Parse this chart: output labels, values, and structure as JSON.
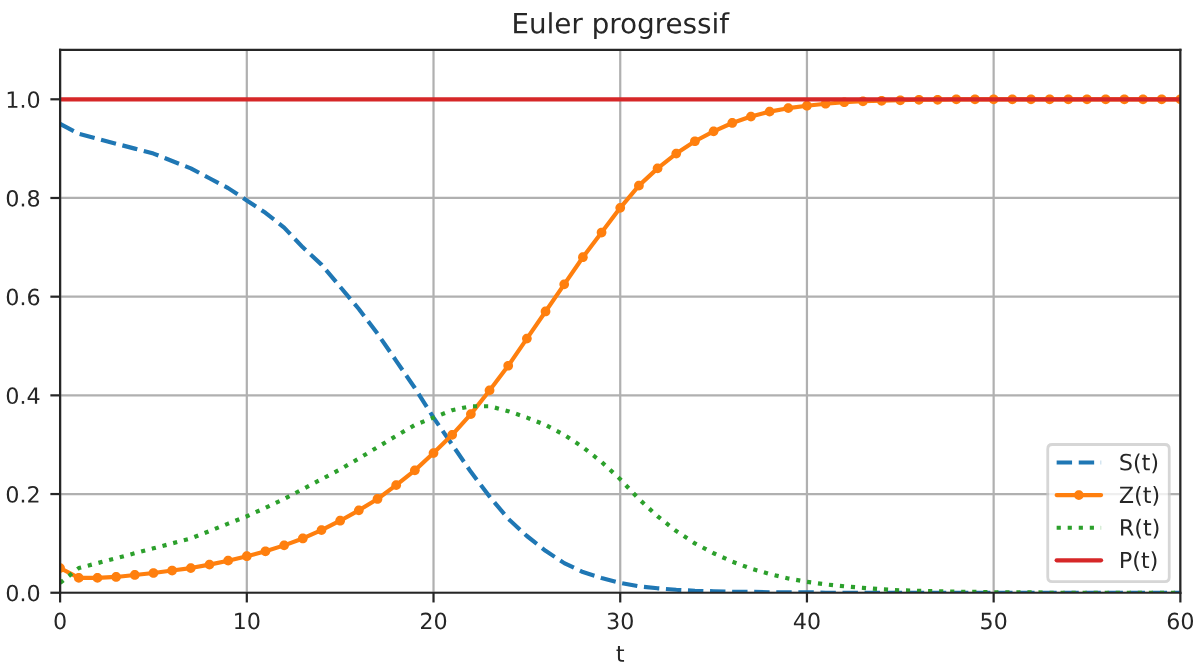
{
  "chart_data": {
    "type": "line",
    "title": "Euler progressif",
    "xlabel": "t",
    "x": [
      0,
      1,
      2,
      3,
      4,
      5,
      6,
      7,
      8,
      9,
      10,
      11,
      12,
      13,
      14,
      15,
      16,
      17,
      18,
      19,
      20,
      21,
      22,
      23,
      24,
      25,
      26,
      27,
      28,
      29,
      30,
      31,
      32,
      33,
      34,
      35,
      36,
      37,
      38,
      39,
      40,
      41,
      42,
      43,
      44,
      45,
      46,
      47,
      48,
      49,
      50,
      51,
      52,
      53,
      54,
      55,
      56,
      57,
      58,
      59,
      60
    ],
    "series": [
      {
        "name": "S(t)",
        "color": "#1f77b4",
        "line_style": "dashed",
        "marker": "none",
        "values": [
          0.95,
          0.93,
          0.92,
          0.91,
          0.9,
          0.89,
          0.875,
          0.86,
          0.84,
          0.82,
          0.795,
          0.77,
          0.74,
          0.7,
          0.665,
          0.62,
          0.575,
          0.525,
          0.47,
          0.415,
          0.355,
          0.3,
          0.245,
          0.195,
          0.15,
          0.115,
          0.085,
          0.06,
          0.042,
          0.03,
          0.02,
          0.013,
          0.009,
          0.006,
          0.004,
          0.003,
          0.002,
          0.002,
          0.001,
          0.001,
          0.001,
          0,
          0,
          0,
          0,
          0,
          0,
          0,
          0,
          0,
          0,
          0,
          0,
          0,
          0,
          0,
          0,
          0,
          0,
          0,
          0
        ]
      },
      {
        "name": "Z(t)",
        "color": "#ff7f0e",
        "line_style": "solid",
        "marker": "circle",
        "values": [
          0.05,
          0.03,
          0.03,
          0.032,
          0.036,
          0.04,
          0.045,
          0.05,
          0.057,
          0.065,
          0.074,
          0.084,
          0.096,
          0.11,
          0.127,
          0.146,
          0.167,
          0.19,
          0.218,
          0.248,
          0.283,
          0.32,
          0.362,
          0.41,
          0.46,
          0.515,
          0.57,
          0.625,
          0.68,
          0.73,
          0.78,
          0.825,
          0.86,
          0.89,
          0.915,
          0.935,
          0.952,
          0.965,
          0.975,
          0.982,
          0.987,
          0.991,
          0.994,
          0.996,
          0.997,
          0.998,
          0.999,
          0.999,
          1,
          1,
          1,
          1,
          1,
          1,
          1,
          1,
          1,
          1,
          1,
          1,
          1
        ]
      },
      {
        "name": "R(t)",
        "color": "#2ca02c",
        "line_style": "dotted",
        "marker": "none",
        "values": [
          0.02,
          0.05,
          0.06,
          0.07,
          0.08,
          0.09,
          0.1,
          0.11,
          0.125,
          0.14,
          0.155,
          0.172,
          0.19,
          0.21,
          0.23,
          0.25,
          0.272,
          0.295,
          0.318,
          0.34,
          0.355,
          0.37,
          0.378,
          0.378,
          0.368,
          0.355,
          0.34,
          0.32,
          0.295,
          0.265,
          0.23,
          0.19,
          0.155,
          0.125,
          0.1,
          0.08,
          0.063,
          0.049,
          0.038,
          0.029,
          0.022,
          0.017,
          0.013,
          0.01,
          0.007,
          0.005,
          0.004,
          0.003,
          0.002,
          0.002,
          0.001,
          0.001,
          0.001,
          0,
          0,
          0,
          0,
          0,
          0,
          0,
          0
        ]
      },
      {
        "name": "P(t)",
        "color": "#d62728",
        "line_style": "solid",
        "marker": "none",
        "values": [
          1,
          1,
          1,
          1,
          1,
          1,
          1,
          1,
          1,
          1,
          1,
          1,
          1,
          1,
          1,
          1,
          1,
          1,
          1,
          1,
          1,
          1,
          1,
          1,
          1,
          1,
          1,
          1,
          1,
          1,
          1,
          1,
          1,
          1,
          1,
          1,
          1,
          1,
          1,
          1,
          1,
          1,
          1,
          1,
          1,
          1,
          1,
          1,
          1,
          1,
          1,
          1,
          1,
          1,
          1,
          1,
          1,
          1,
          1,
          1,
          1
        ]
      }
    ],
    "xlim": [
      0,
      60
    ],
    "xticks": [
      0,
      10,
      20,
      30,
      40,
      50,
      60
    ],
    "ylim": [
      0,
      1.1
    ],
    "yticks": [
      {
        "value": 0,
        "label": "0.0"
      },
      0.2,
      0.4,
      0.6,
      0.8,
      {
        "value": 1,
        "label": "1.0"
      }
    ],
    "grid": true,
    "legend": "bottom right"
  }
}
